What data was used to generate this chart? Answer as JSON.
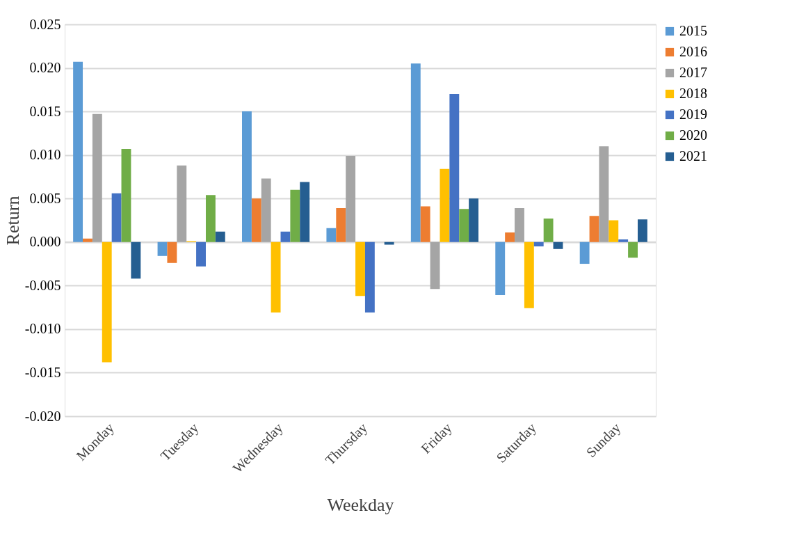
{
  "chart_data": {
    "type": "bar",
    "xlabel": "Weekday",
    "ylabel": "Return",
    "categories": [
      "Monday",
      "Tuesday",
      "Wednesday",
      "Thursday",
      "Friday",
      "Saturday",
      "Sunday"
    ],
    "series": [
      {
        "name": "2015",
        "color": "#5b9bd5",
        "values": [
          0.0207,
          -0.0016,
          0.015,
          0.0016,
          0.0205,
          -0.0061,
          -0.0025
        ]
      },
      {
        "name": "2016",
        "color": "#ed7d31",
        "values": [
          0.0004,
          -0.0024,
          0.005,
          0.0039,
          0.0041,
          0.0011,
          0.003
        ]
      },
      {
        "name": "2017",
        "color": "#a5a5a5",
        "values": [
          0.0147,
          0.0088,
          0.0073,
          0.0099,
          -0.0054,
          0.0039,
          0.011
        ]
      },
      {
        "name": "2018",
        "color": "#ffc000",
        "values": [
          -0.0138,
          0.0001,
          -0.0081,
          -0.0062,
          0.0084,
          -0.0076,
          0.0025
        ]
      },
      {
        "name": "2019",
        "color": "#4472c4",
        "values": [
          0.0056,
          -0.0028,
          0.0012,
          -0.0081,
          0.017,
          -0.0005,
          0.0003
        ]
      },
      {
        "name": "2020",
        "color": "#70ad47",
        "values": [
          0.0107,
          0.0054,
          0.006,
          null,
          0.0038,
          0.0027,
          -0.0018
        ]
      },
      {
        "name": "2021",
        "color": "#255e91",
        "values": [
          -0.0042,
          0.0012,
          0.0069,
          -0.0003,
          0.005,
          -0.0008,
          0.0026
        ]
      }
    ],
    "ylim": [
      -0.02,
      0.025
    ],
    "yticks": [
      {
        "value": -0.02,
        "label": "-0.020"
      },
      {
        "value": -0.015,
        "label": "-0.015"
      },
      {
        "value": -0.01,
        "label": "-0.010"
      },
      {
        "value": -0.005,
        "label": "-0.005"
      },
      {
        "value": 0,
        "label": "0.000"
      },
      {
        "value": 0.005,
        "label": "0.005"
      },
      {
        "value": 0.01,
        "label": "0.010"
      },
      {
        "value": 0.015,
        "label": "0.015"
      },
      {
        "value": 0.02,
        "label": "0.020"
      },
      {
        "value": 0.025,
        "label": "0.025"
      }
    ],
    "grid": "y",
    "legend": "right"
  }
}
